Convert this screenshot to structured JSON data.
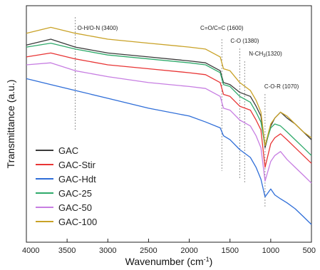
{
  "chart_data": {
    "type": "line",
    "title": "",
    "xlabel": "Wavenumber (cm",
    "xlabel_sup": "-1",
    "xlabel_close": ")",
    "ylabel": "Transmittance (a.u.)",
    "xlim": [
      4000,
      500
    ],
    "x_reversed": true,
    "y_ticks_shown": false,
    "grid": false,
    "legend_position": "bottom-left",
    "x_ticks": [
      "4000",
      "3500",
      "3000",
      "2500",
      "2000",
      "1500",
      "1000",
      "500"
    ],
    "x_tick_values": [
      4000,
      3500,
      3000,
      2500,
      2000,
      1500,
      1000,
      500
    ],
    "annotations": [
      {
        "label": "O-H/O-N (3400)",
        "x": 3400
      },
      {
        "label": "C=O/C=C (1600)",
        "x": 1600
      },
      {
        "label": "C-O (1380)",
        "x": 1380
      },
      {
        "label": "N-CH",
        "sub": "3",
        "label_tail": "(1320)",
        "x": 1320
      },
      {
        "label": "C-O-R (1070)",
        "x": 1070
      }
    ],
    "x": [
      4000,
      3700,
      3400,
      3000,
      2500,
      2000,
      1800,
      1620,
      1580,
      1500,
      1380,
      1250,
      1180,
      1120,
      1070,
      1000,
      950,
      880,
      800,
      700,
      600,
      500
    ],
    "series": [
      {
        "name": "GAC",
        "color": "#3a3a3a",
        "values": [
          7.0,
          7.3,
          6.9,
          6.6,
          6.4,
          6.2,
          6.1,
          5.7,
          5.1,
          5.0,
          4.6,
          4.4,
          3.9,
          3.4,
          1.8,
          2.9,
          3.3,
          3.6,
          3.3,
          3.0,
          2.6,
          2.2
        ]
      },
      {
        "name": "GAC-Stir",
        "color": "#e83535",
        "values": [
          6.4,
          6.6,
          6.3,
          6.0,
          5.8,
          5.6,
          5.5,
          5.1,
          4.5,
          4.4,
          3.9,
          3.7,
          3.2,
          2.7,
          0.8,
          2.0,
          2.3,
          2.5,
          2.2,
          1.8,
          1.4,
          1.0
        ]
      },
      {
        "name": "GAC-Hdt",
        "color": "#2f6ed8",
        "values": [
          5.3,
          5.0,
          4.7,
          4.3,
          3.8,
          3.4,
          3.1,
          2.8,
          2.4,
          2.2,
          1.7,
          1.3,
          0.8,
          0.2,
          -0.7,
          -0.3,
          -0.6,
          -0.8,
          -1.0,
          -1.3,
          -1.7,
          -2.1
        ]
      },
      {
        "name": "GAC-25",
        "color": "#2faa6b",
        "values": [
          6.9,
          7.1,
          6.8,
          6.5,
          6.3,
          6.1,
          6.0,
          5.6,
          5.0,
          4.9,
          4.4,
          4.1,
          3.6,
          3.1,
          1.9,
          2.8,
          3.0,
          2.9,
          2.6,
          2.2,
          1.8,
          1.4
        ]
      },
      {
        "name": "GAC-50",
        "color": "#c77ee2",
        "values": [
          6.0,
          6.1,
          5.7,
          5.4,
          5.1,
          4.9,
          4.8,
          4.4,
          3.8,
          3.7,
          3.2,
          2.9,
          2.4,
          1.8,
          0.1,
          1.1,
          1.4,
          1.6,
          1.2,
          0.8,
          0.4,
          0.0
        ]
      },
      {
        "name": "GAC-100",
        "color": "#c9a227",
        "values": [
          7.6,
          7.9,
          7.6,
          7.3,
          7.1,
          6.9,
          6.8,
          6.4,
          5.8,
          5.7,
          5.1,
          4.7,
          4.2,
          3.6,
          1.9,
          3.0,
          3.3,
          3.6,
          3.4,
          3.0,
          2.6,
          2.3
        ]
      }
    ]
  }
}
